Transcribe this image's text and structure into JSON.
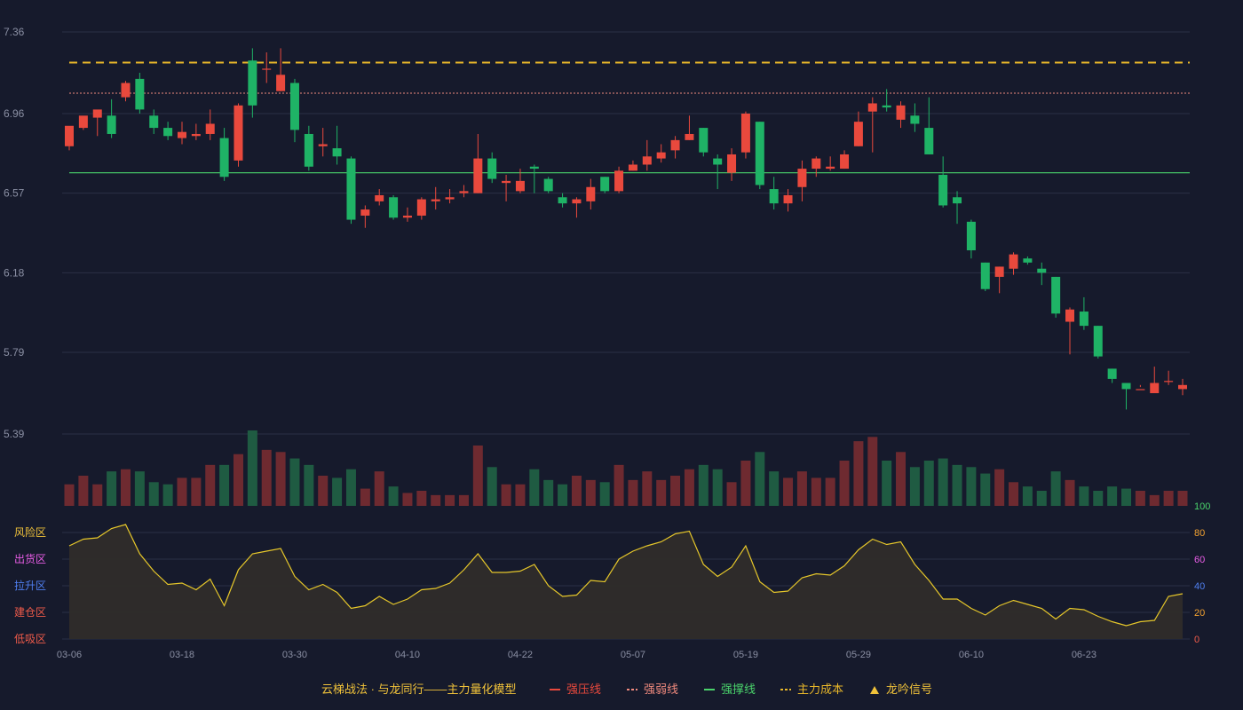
{
  "colors": {
    "background": "#161a2c",
    "grid": "#2b3046",
    "up": "#e9493d",
    "down": "#1fb366",
    "resistance": "#e9493d",
    "weak": "#f08a7e",
    "support": "#4ad36b",
    "cost": "#e8b72a",
    "oscLine": "#e6c72a",
    "oscFill": "#2f2c2a"
  },
  "legend": {
    "model": "云梯战法 · 与龙同行——主力量化模型",
    "items": [
      {
        "label": "强压线",
        "color": "#e9493d",
        "style": "solid"
      },
      {
        "label": "强弱线",
        "color": "#f08a7e",
        "style": "dashed"
      },
      {
        "label": "强撑线",
        "color": "#4ad36b",
        "style": "solid"
      },
      {
        "label": "主力成本",
        "color": "#e8b72a",
        "style": "dashed"
      },
      {
        "label": "龙吟信号",
        "color": "#f0c23a",
        "style": "triangle"
      }
    ]
  },
  "chart_data": [
    {
      "type": "candlestick",
      "yticks": [
        "7.36",
        "6.96",
        "6.57",
        "6.18",
        "5.79",
        "5.39"
      ],
      "ylim": [
        5.39,
        7.36
      ],
      "xticks": [
        {
          "label": "03-06",
          "index": 0
        },
        {
          "label": "03-18",
          "index": 8
        },
        {
          "label": "03-30",
          "index": 16
        },
        {
          "label": "04-10",
          "index": 24
        },
        {
          "label": "04-22",
          "index": 32
        },
        {
          "label": "05-07",
          "index": 40
        },
        {
          "label": "05-19",
          "index": 48
        },
        {
          "label": "05-29",
          "index": 56
        },
        {
          "label": "06-10",
          "index": 64
        },
        {
          "label": "06-23",
          "index": 72
        }
      ],
      "levels": {
        "cost": 7.21,
        "weak": 7.06,
        "support": 6.67
      },
      "ohlc": [
        [
          6.8,
          6.9,
          6.89,
          6.78
        ],
        [
          6.89,
          6.95,
          6.94,
          6.88
        ],
        [
          6.94,
          6.98,
          6.96,
          6.85
        ],
        [
          6.95,
          6.86,
          7.03,
          6.84
        ],
        [
          7.04,
          7.11,
          7.12,
          7.02
        ],
        [
          7.13,
          6.98,
          7.16,
          6.96
        ],
        [
          6.95,
          6.89,
          6.98,
          6.86
        ],
        [
          6.89,
          6.85,
          6.92,
          6.83
        ],
        [
          6.84,
          6.87,
          6.92,
          6.81
        ],
        [
          6.85,
          6.86,
          6.91,
          6.83
        ],
        [
          6.86,
          6.91,
          6.98,
          6.83
        ],
        [
          6.84,
          6.65,
          6.89,
          6.63
        ],
        [
          6.73,
          7.0,
          7.01,
          6.7
        ],
        [
          7.22,
          7.0,
          7.28,
          6.94
        ],
        [
          7.18,
          7.18,
          7.26,
          7.11
        ],
        [
          7.07,
          7.15,
          7.28,
          7.07
        ],
        [
          7.11,
          6.88,
          7.13,
          6.82
        ],
        [
          6.86,
          6.7,
          6.9,
          6.68
        ],
        [
          6.8,
          6.81,
          6.89,
          6.75
        ],
        [
          6.79,
          6.75,
          6.9,
          6.71
        ],
        [
          6.74,
          6.44,
          6.75,
          6.42
        ],
        [
          6.46,
          6.49,
          6.51,
          6.4
        ],
        [
          6.53,
          6.56,
          6.59,
          6.51
        ],
        [
          6.55,
          6.45,
          6.56,
          6.44
        ],
        [
          6.45,
          6.46,
          6.5,
          6.43
        ],
        [
          6.46,
          6.54,
          6.55,
          6.44
        ],
        [
          6.53,
          6.54,
          6.6,
          6.49
        ],
        [
          6.54,
          6.55,
          6.59,
          6.52
        ],
        [
          6.57,
          6.58,
          6.61,
          6.55
        ],
        [
          6.57,
          6.74,
          6.86,
          6.57
        ],
        [
          6.74,
          6.64,
          6.77,
          6.62
        ],
        [
          6.62,
          6.63,
          6.66,
          6.53
        ],
        [
          6.58,
          6.63,
          6.69,
          6.57
        ],
        [
          6.7,
          6.69,
          6.71,
          6.57
        ],
        [
          6.64,
          6.58,
          6.65,
          6.57
        ],
        [
          6.55,
          6.52,
          6.57,
          6.5
        ],
        [
          6.52,
          6.54,
          6.55,
          6.45
        ],
        [
          6.53,
          6.6,
          6.64,
          6.49
        ],
        [
          6.65,
          6.58,
          6.65,
          6.57
        ],
        [
          6.58,
          6.68,
          6.7,
          6.57
        ],
        [
          6.68,
          6.71,
          6.73,
          6.68
        ],
        [
          6.71,
          6.75,
          6.83,
          6.68
        ],
        [
          6.74,
          6.77,
          6.81,
          6.72
        ],
        [
          6.78,
          6.83,
          6.85,
          6.74
        ],
        [
          6.83,
          6.86,
          6.95,
          6.83
        ],
        [
          6.89,
          6.77,
          6.89,
          6.75
        ],
        [
          6.74,
          6.71,
          6.76,
          6.59
        ],
        [
          6.67,
          6.76,
          6.79,
          6.63
        ],
        [
          6.77,
          6.96,
          6.97,
          6.74
        ],
        [
          6.92,
          6.61,
          6.92,
          6.59
        ],
        [
          6.59,
          6.52,
          6.65,
          6.49
        ],
        [
          6.52,
          6.56,
          6.59,
          6.48
        ],
        [
          6.6,
          6.69,
          6.73,
          6.53
        ],
        [
          6.69,
          6.74,
          6.75,
          6.65
        ],
        [
          6.69,
          6.7,
          6.75,
          6.68
        ],
        [
          6.69,
          6.76,
          6.78,
          6.69
        ],
        [
          6.8,
          6.92,
          6.97,
          6.8
        ],
        [
          6.97,
          7.01,
          7.04,
          6.77
        ],
        [
          7.0,
          6.99,
          7.08,
          6.97
        ],
        [
          6.93,
          7.0,
          7.02,
          6.89
        ],
        [
          6.95,
          6.91,
          7.01,
          6.87
        ],
        [
          6.89,
          6.76,
          7.04,
          6.76
        ],
        [
          6.66,
          6.51,
          6.75,
          6.5
        ],
        [
          6.55,
          6.52,
          6.58,
          6.42
        ],
        [
          6.43,
          6.29,
          6.44,
          6.25
        ],
        [
          6.23,
          6.1,
          6.23,
          6.09
        ],
        [
          6.16,
          6.21,
          6.21,
          6.08
        ],
        [
          6.2,
          6.27,
          6.28,
          6.17
        ],
        [
          6.25,
          6.23,
          6.26,
          6.22
        ],
        [
          6.2,
          6.18,
          6.23,
          6.12
        ],
        [
          6.16,
          5.98,
          6.16,
          5.96
        ],
        [
          5.94,
          6.0,
          6.01,
          5.78
        ],
        [
          5.99,
          5.92,
          6.06,
          5.9
        ],
        [
          5.92,
          5.77,
          5.92,
          5.76
        ],
        [
          5.71,
          5.66,
          5.71,
          5.64
        ],
        [
          5.64,
          5.61,
          5.62,
          5.51
        ],
        [
          5.61,
          5.61,
          5.63,
          5.62
        ],
        [
          5.59,
          5.64,
          5.72,
          5.6
        ],
        [
          5.65,
          5.65,
          5.7,
          5.63
        ],
        [
          5.61,
          5.63,
          5.66,
          5.58
        ]
      ],
      "volume": [
        0.1,
        0.14,
        0.1,
        0.16,
        0.17,
        0.16,
        0.11,
        0.1,
        0.13,
        0.13,
        0.19,
        0.19,
        0.24,
        0.35,
        0.26,
        0.25,
        0.22,
        0.19,
        0.14,
        0.13,
        0.17,
        0.08,
        0.16,
        0.09,
        0.06,
        0.07,
        0.05,
        0.05,
        0.05,
        0.28,
        0.18,
        0.1,
        0.1,
        0.17,
        0.12,
        0.1,
        0.14,
        0.12,
        0.11,
        0.19,
        0.12,
        0.16,
        0.12,
        0.14,
        0.17,
        0.19,
        0.17,
        0.11,
        0.21,
        0.25,
        0.16,
        0.13,
        0.16,
        0.13,
        0.13,
        0.21,
        0.3,
        0.32,
        0.21,
        0.25,
        0.18,
        0.21,
        0.22,
        0.19,
        0.18,
        0.15,
        0.17,
        0.11,
        0.09,
        0.07,
        0.16,
        0.12,
        0.09,
        0.07,
        0.09,
        0.08,
        0.07,
        0.05,
        0.07,
        0.07
      ]
    },
    {
      "type": "line",
      "zones": [
        {
          "label": "风险区",
          "value": 80,
          "color": "#f0c23a"
        },
        {
          "label": "出货区",
          "value": 60,
          "color": "#e85de6"
        },
        {
          "label": "拉升区",
          "value": 40,
          "color": "#4f7ff0"
        },
        {
          "label": "建仓区",
          "value": 20,
          "color": "#ef5b4a"
        },
        {
          "label": "低吸区",
          "value": 0,
          "color": "#ef5b4a"
        }
      ],
      "yticks": [
        {
          "label": "100",
          "color": "#4ad36b"
        },
        {
          "label": "80",
          "color": "#f0a030"
        },
        {
          "label": "60",
          "color": "#e85de6"
        },
        {
          "label": "40",
          "color": "#4f7ff0"
        },
        {
          "label": "20",
          "color": "#f0a030"
        },
        {
          "label": "0",
          "color": "#ef5b4a"
        }
      ],
      "ylim": [
        0,
        100
      ],
      "values": [
        70,
        75,
        76,
        83,
        86,
        64,
        51,
        41,
        42,
        37,
        45,
        25,
        52,
        64,
        66,
        68,
        47,
        37,
        41,
        35,
        23,
        25,
        32,
        26,
        30,
        37,
        38,
        42,
        52,
        64,
        50,
        50,
        51,
        56,
        40,
        32,
        33,
        44,
        43,
        60,
        66,
        70,
        73,
        79,
        81,
        56,
        47,
        54,
        70,
        43,
        35,
        36,
        46,
        49,
        48,
        55,
        67,
        75,
        71,
        73,
        56,
        44,
        30,
        30,
        23,
        18,
        25,
        29,
        26,
        23,
        15,
        23,
        22,
        17,
        13,
        10,
        13,
        14,
        32,
        34
      ]
    }
  ]
}
